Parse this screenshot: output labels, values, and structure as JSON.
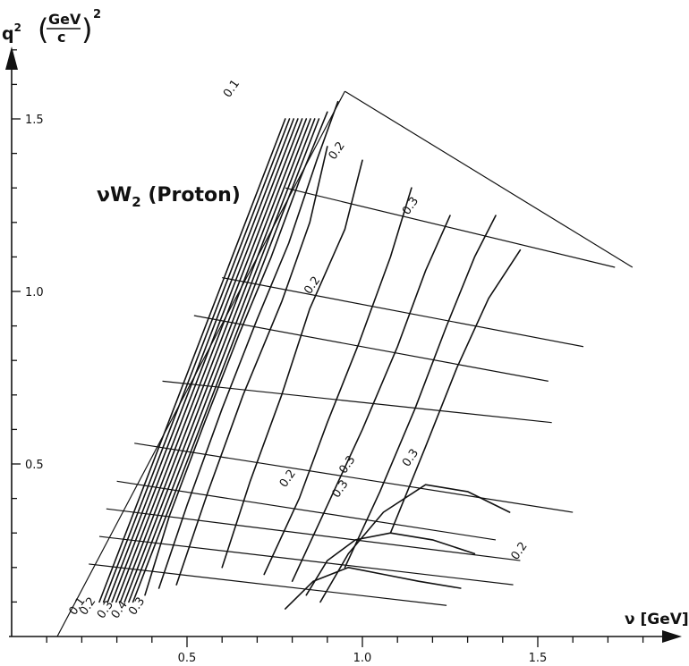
{
  "chart_data": {
    "type": "contour",
    "title": "νW",
    "title_sub": "2",
    "title_rest": "(Proton)",
    "xlabel": "ν [GeV]",
    "ylabel_q": "q",
    "ylabel_sup": "2",
    "ylabel_num": "GeV",
    "ylabel_den": "c",
    "ylabel_pow": "2",
    "x_ticks": [
      "0.5",
      "1.0",
      "1.5"
    ],
    "x_tick_values": [
      0.5,
      1.0,
      1.5
    ],
    "y_ticks": [
      "0.5",
      "1.0",
      "1.5"
    ],
    "y_tick_values": [
      0.5,
      1.0,
      1.5
    ],
    "xlim": [
      0,
      1.9
    ],
    "ylim": [
      0,
      1.75
    ],
    "contour_labels": [
      {
        "text": "0.1",
        "x": 0.62,
        "y": 1.56
      },
      {
        "text": "0.2",
        "x": 0.92,
        "y": 1.38
      },
      {
        "text": "0.3",
        "x": 1.13,
        "y": 1.22
      },
      {
        "text": "0.2",
        "x": 0.85,
        "y": 0.99
      },
      {
        "text": "0.3",
        "x": 1.13,
        "y": 0.49
      },
      {
        "text": "0.2",
        "x": 0.78,
        "y": 0.43
      },
      {
        "text": "0.3",
        "x": 0.93,
        "y": 0.4
      },
      {
        "text": "0.3",
        "x": 0.95,
        "y": 0.47
      },
      {
        "text": "0.2",
        "x": 1.44,
        "y": 0.22
      },
      {
        "text": "0.1",
        "x": 0.18,
        "y": 0.06
      },
      {
        "text": "0.2",
        "x": 0.21,
        "y": 0.06
      },
      {
        "text": "0.3",
        "x": 0.26,
        "y": 0.05
      },
      {
        "text": "0.4",
        "x": 0.3,
        "y": 0.05
      },
      {
        "text": "0.3",
        "x": 0.35,
        "y": 0.06
      }
    ]
  },
  "colors": {
    "ink": "#111111",
    "background": "#ffffff"
  }
}
